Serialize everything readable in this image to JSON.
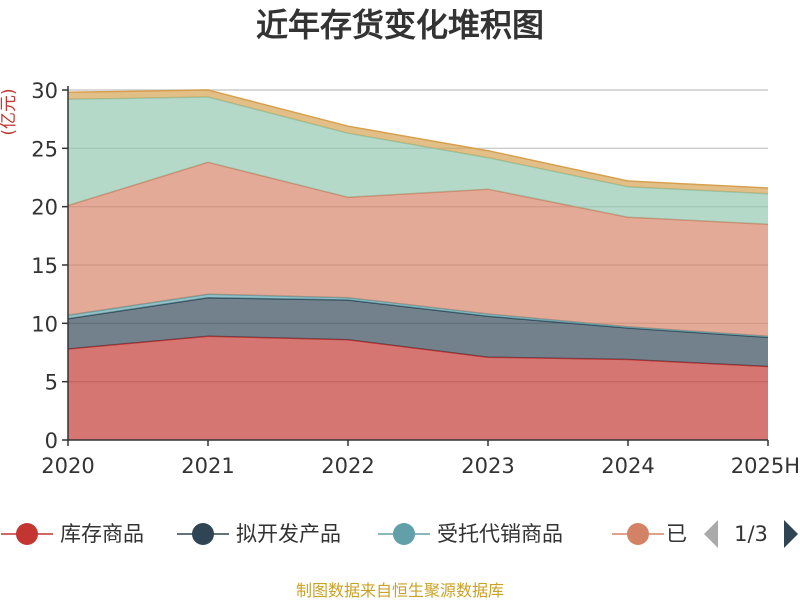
{
  "title": "近年存货变化堆积图",
  "source_note": "制图数据来自恒生聚源数据库",
  "legend": {
    "items": [
      "库存商品",
      "拟开发产品",
      "受托代销商品",
      "已"
    ],
    "page": "1/3"
  },
  "chart_data": {
    "type": "area",
    "stacked": true,
    "title": "近年存货变化堆积图",
    "ylabel": "(亿元)",
    "xlabel": "",
    "x": [
      "2020",
      "2021",
      "2022",
      "2023",
      "2024",
      "2025H"
    ],
    "ylim": [
      0,
      30
    ],
    "yticks": [
      0,
      5,
      10,
      15,
      20,
      25,
      30
    ],
    "grid": true,
    "legend_position": "bottom",
    "series": [
      {
        "name": "库存商品",
        "color": "#c23531",
        "values": [
          7.8,
          8.9,
          8.6,
          7.1,
          6.9,
          6.3
        ]
      },
      {
        "name": "拟开发产品",
        "color": "#2f4554",
        "values": [
          2.6,
          3.3,
          3.4,
          3.5,
          2.7,
          2.5
        ]
      },
      {
        "name": "受托代销商品",
        "color": "#61a0a8",
        "values": [
          0.3,
          0.3,
          0.2,
          0.2,
          0.1,
          0.1
        ]
      },
      {
        "name": "已",
        "color": "#d48265",
        "values": [
          9.4,
          11.3,
          8.6,
          10.7,
          9.4,
          9.6
        ]
      },
      {
        "color": "#91c7ae",
        "values": [
          9.1,
          5.6,
          5.5,
          2.7,
          2.6,
          2.6
        ]
      },
      {
        "color": "#d6a050",
        "values": [
          0.6,
          0.6,
          0.6,
          0.6,
          0.5,
          0.5
        ]
      }
    ]
  }
}
